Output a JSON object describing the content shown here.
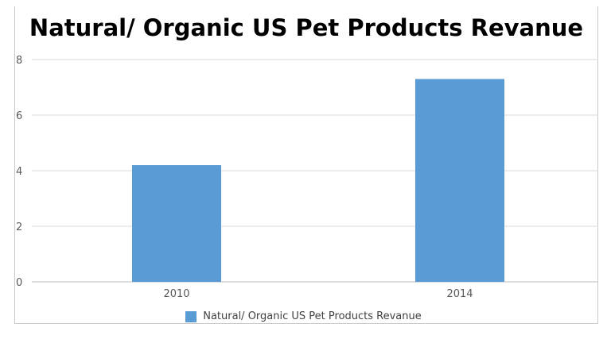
{
  "chart_data": {
    "type": "bar",
    "title": "Natural/ Organic US Pet Products Revanue",
    "categories": [
      "2010",
      "2014"
    ],
    "series": [
      {
        "name": "Natural/ Organic US Pet Products Revanue",
        "values": [
          4.2,
          7.3
        ],
        "color": "#5b9bd5"
      }
    ],
    "ylim": [
      0,
      8
    ],
    "yticks": [
      "0",
      "2",
      "4",
      "6",
      "8"
    ],
    "grid": true,
    "legend_position": "bottom"
  }
}
